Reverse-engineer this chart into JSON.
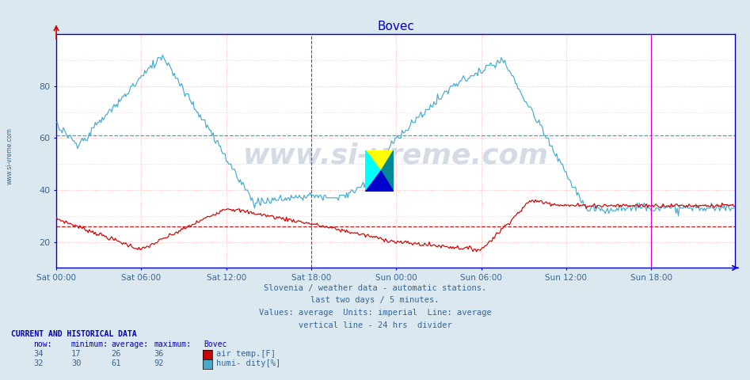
{
  "title": "Bovec",
  "title_color": "#0000cc",
  "bg_color": "#dce8f0",
  "plot_bg_color": "#ffffff",
  "grid_color_h": "#ffaaaa",
  "grid_color_v": "#ffaaaa",
  "x_ticks_labels": [
    "Sat 00:00",
    "Sat 06:00",
    "Sat 12:00",
    "Sat 18:00",
    "Sun 00:00",
    "Sun 06:00",
    "Sun 12:00",
    "Sun 18:00"
  ],
  "x_ticks_pos": [
    0,
    72,
    144,
    216,
    288,
    360,
    432,
    504
  ],
  "total_points": 576,
  "ylim": [
    10,
    100
  ],
  "yticks": [
    20,
    40,
    60,
    80
  ],
  "ylabel_color": "#336699",
  "watermark": "www.si-vreme.com",
  "watermark_color": "#1a3a6a",
  "watermark_alpha": 0.18,
  "subtitle_lines": [
    "Slovenia / weather data - automatic stations.",
    "last two days / 5 minutes.",
    "Values: average  Units: imperial  Line: average",
    "vertical line - 24 hrs  divider"
  ],
  "subtitle_color": "#336699",
  "avg_line_temp": 26,
  "avg_line_humi": 61,
  "avg_line_temp_color": "#cc0000",
  "avg_line_humi_color": "#00aacc",
  "vline_color": "#555555",
  "vline_pos": 216,
  "border_color": "#0000cc",
  "temp_color": "#cc0000",
  "humi_color": "#44aacc",
  "table_header_color": "#0000aa",
  "table_data_color": "#336699",
  "temp_now": 34,
  "temp_min": 17,
  "temp_avg": 26,
  "temp_max": 36,
  "humi_now": 32,
  "humi_min": 30,
  "humi_avg": 61,
  "humi_max": 92,
  "left_label": "www.si-vreme.com",
  "left_label_color": "#336699"
}
